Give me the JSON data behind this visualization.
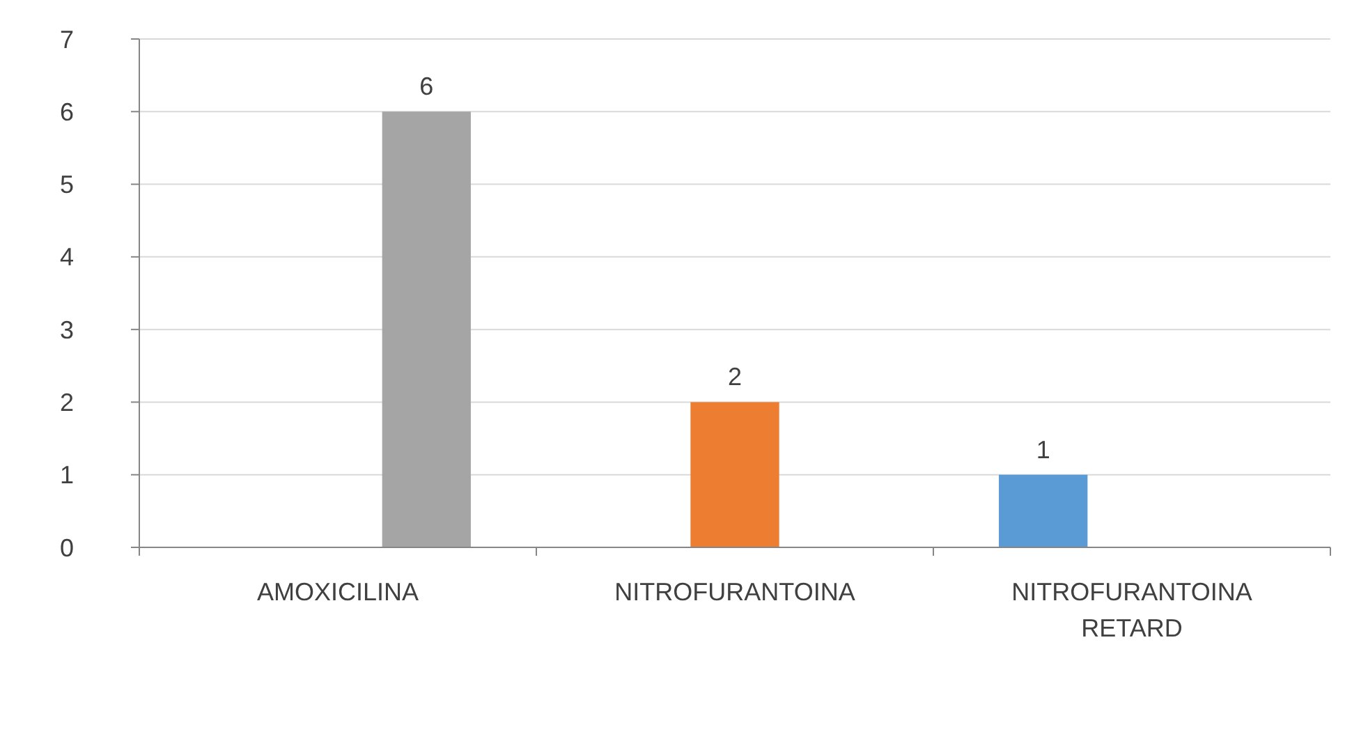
{
  "chart_data": {
    "type": "bar",
    "categories": [
      "AMOXICILINA",
      "NITROFURANTOINA",
      "NITROFURANTOINA RETARD"
    ],
    "series": [
      {
        "color": "#5b9bd5",
        "values": [
          null,
          null,
          1
        ]
      },
      {
        "color": "#ed7d31",
        "values": [
          null,
          2,
          null
        ]
      },
      {
        "color": "#a5a5a5",
        "values": [
          6,
          null,
          null
        ]
      }
    ],
    "ylim": [
      0,
      7
    ],
    "yticks": [
      0,
      1,
      2,
      3,
      4,
      5,
      6,
      7
    ],
    "grid": "y",
    "data_labels": true
  }
}
